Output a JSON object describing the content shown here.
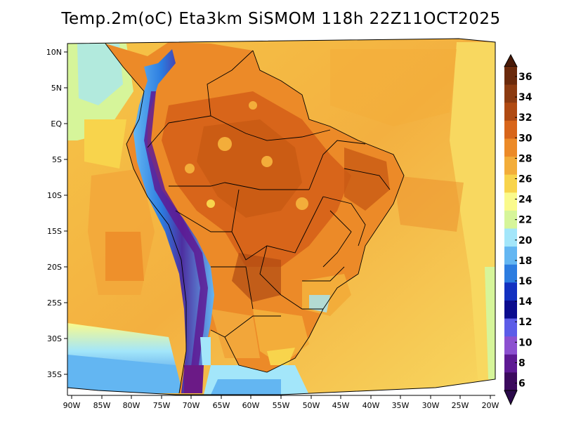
{
  "title": "Temp.2m(oC) Eta3km SiSMOM 118h 22Z11OCT2025",
  "lat_labels": [
    "10N",
    "5N",
    "EQ",
    "5S",
    "10S",
    "15S",
    "20S",
    "25S",
    "30S",
    "35S"
  ],
  "lon_labels": [
    "90W",
    "85W",
    "80W",
    "75W",
    "70W",
    "65W",
    "60W",
    "55W",
    "50W",
    "45W",
    "40W",
    "35W",
    "30W",
    "25W",
    "20W"
  ],
  "colorbar": {
    "labels": [
      "36",
      "34",
      "32",
      "30",
      "28",
      "26",
      "24",
      "22",
      "20",
      "18",
      "16",
      "14",
      "12",
      "10",
      "8",
      "6"
    ],
    "colors": [
      "#6b2a0c",
      "#8c3b11",
      "#b04a12",
      "#d8651a",
      "#ec8a28",
      "#f3ad3a",
      "#f8d44c",
      "#fafa8c",
      "#d6f59a",
      "#a3e6fa",
      "#63b6f2",
      "#2c7ce0",
      "#1230c0",
      "#0a0b8e",
      "#5c5ce8",
      "#8c50d0",
      "#5e1a94",
      "#3c0a5e"
    ],
    "up_arrow_color": "#4a1a08",
    "down_arrow_color": "#2b0a4a"
  },
  "map_colors": {
    "ocean_mid": "#f5c045",
    "ocean_warm": "#f2a63a",
    "ocean_cool": "#f8e070",
    "land_hot": "#e0761e",
    "land_hotter": "#c95a14",
    "andes": "#4d2fa0",
    "andes_peak": "#6b1a86",
    "cold_south": "#3b8ee0",
    "border": "#000000"
  }
}
